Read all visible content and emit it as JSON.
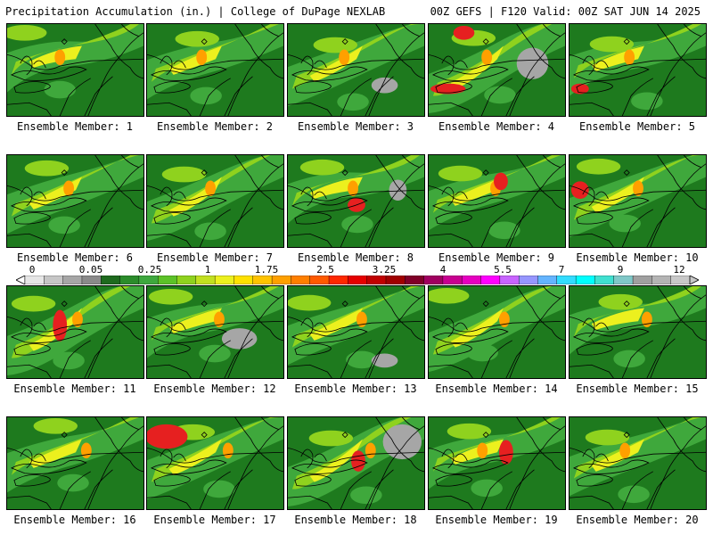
{
  "header": {
    "left_title": "Precipitation Accumulation (in.) | College of DuPage NEXLAB",
    "right_title": "00Z GEFS | F120 Valid: 00Z SAT JUN 14 2025"
  },
  "colorbar": {
    "tick_labels": [
      "0",
      "0.05",
      "0.25",
      "1",
      "1.75",
      "2.5",
      "3.25",
      "4",
      "5.5",
      "7",
      "9",
      "12"
    ],
    "colors": [
      "#e6e6e6",
      "#c6c6c6",
      "#a6a6a6",
      "#8a8a8a",
      "#1e6a1e",
      "#2b8c2b",
      "#3ea83e",
      "#5cc228",
      "#8fd21e",
      "#c2e020",
      "#ecf01e",
      "#ffe100",
      "#ffc300",
      "#ffa000",
      "#ff7f00",
      "#ff5a00",
      "#ff2800",
      "#e60000",
      "#c00000",
      "#a00000",
      "#800028",
      "#a00060",
      "#c80090",
      "#e600c0",
      "#ff00ff",
      "#c864ff",
      "#9696ff",
      "#64b4ff",
      "#32dcff",
      "#00ffff",
      "#40e0d0",
      "#80c8c8",
      "#a0a0a0",
      "#b4b4b4",
      "#c8c8c8"
    ]
  },
  "panels": [
    {
      "label": "Ensemble Member: 1"
    },
    {
      "label": "Ensemble Member: 2"
    },
    {
      "label": "Ensemble Member: 3"
    },
    {
      "label": "Ensemble Member: 4"
    },
    {
      "label": "Ensemble Member: 5"
    },
    {
      "label": "Ensemble Member: 6"
    },
    {
      "label": "Ensemble Member: 7"
    },
    {
      "label": "Ensemble Member: 8"
    },
    {
      "label": "Ensemble Member: 9"
    },
    {
      "label": "Ensemble Member: 10"
    },
    {
      "label": "Ensemble Member: 11"
    },
    {
      "label": "Ensemble Member: 12"
    },
    {
      "label": "Ensemble Member: 13"
    },
    {
      "label": "Ensemble Member: 14"
    },
    {
      "label": "Ensemble Member: 15"
    },
    {
      "label": "Ensemble Member: 16"
    },
    {
      "label": "Ensemble Member: 17"
    },
    {
      "label": "Ensemble Member: 18"
    },
    {
      "label": "Ensemble Member: 19"
    },
    {
      "label": "Ensemble Member: 20"
    }
  ],
  "map_colors": {
    "dark_green": "#1e7a1e",
    "green": "#3fa83c",
    "light_green": "#8fd21e",
    "yellow": "#ecf01e",
    "orange": "#ffa000",
    "red": "#e62020",
    "purple": "#a0005a",
    "gray": "#a6a6a6"
  }
}
